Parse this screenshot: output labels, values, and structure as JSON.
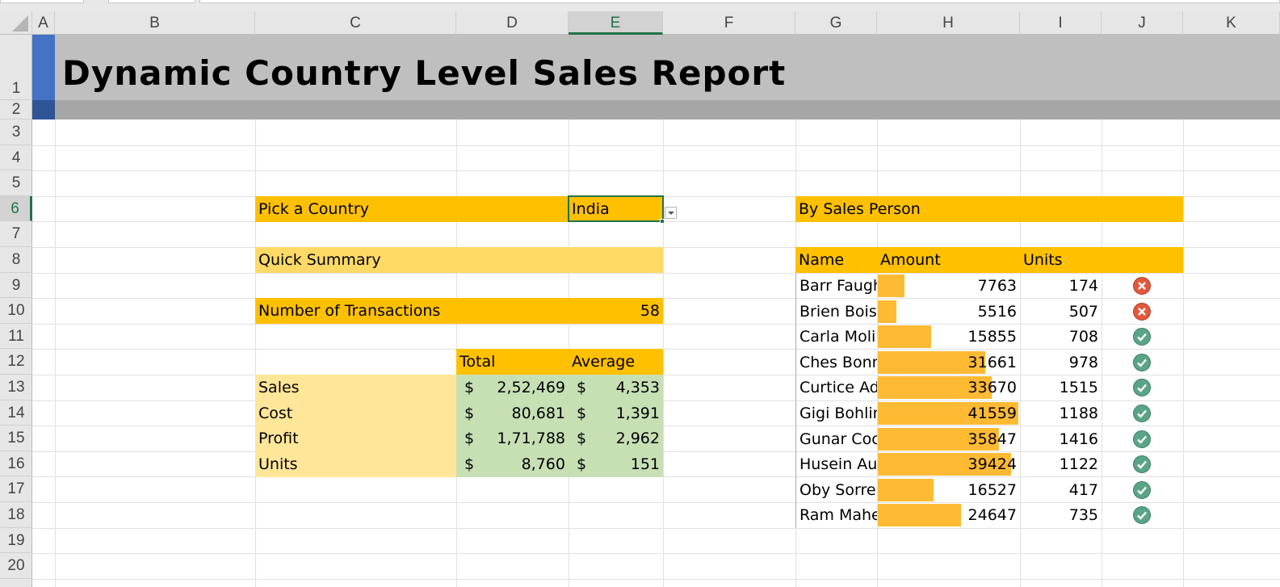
{
  "columns": [
    "A",
    "B",
    "C",
    "D",
    "E",
    "F",
    "G",
    "H",
    "I",
    "J",
    "K"
  ],
  "rows": [
    "1",
    "2",
    "3",
    "4",
    "5",
    "6",
    "7",
    "8",
    "9",
    "10",
    "11",
    "12",
    "13",
    "14",
    "15",
    "16",
    "17",
    "18",
    "19",
    "20"
  ],
  "selected_column": "E",
  "selected_row": "6",
  "title": "Dynamic Country Level Sales Report",
  "picker": {
    "label": "Pick a Country",
    "value": "India"
  },
  "quick_summary": {
    "label": "Quick Summary"
  },
  "transactions": {
    "label": "Number of Transactions",
    "value": "58"
  },
  "summary_table": {
    "headers": {
      "total": "Total",
      "average": "Average"
    },
    "currency": "$",
    "rows": [
      {
        "label": "Sales",
        "total": "2,52,469",
        "average": "4,353"
      },
      {
        "label": "Cost",
        "total": "80,681",
        "average": "1,391"
      },
      {
        "label": "Profit",
        "total": "1,71,788",
        "average": "2,962"
      },
      {
        "label": "Units",
        "total": "8,760",
        "average": "151"
      }
    ]
  },
  "by_sales_person": {
    "title": "By Sales Person",
    "headers": {
      "name": "Name",
      "amount": "Amount",
      "units": "Units"
    },
    "bar_max": 41559,
    "rows": [
      {
        "name": "Barr Faugh",
        "amount": "7763",
        "units": "174",
        "status": "cross-icon"
      },
      {
        "name": "Brien Boise",
        "amount": "5516",
        "units": "507",
        "status": "cross-icon"
      },
      {
        "name": "Carla Molin",
        "amount": "15855",
        "units": "708",
        "status": "check-icon"
      },
      {
        "name": "Ches Bonn",
        "amount": "31661",
        "units": "978",
        "status": "check-icon"
      },
      {
        "name": "Curtice Adv",
        "amount": "33670",
        "units": "1515",
        "status": "check-icon"
      },
      {
        "name": "Gigi Bohlin",
        "amount": "41559",
        "units": "1188",
        "status": "check-icon"
      },
      {
        "name": "Gunar Coc",
        "amount": "35847",
        "units": "1416",
        "status": "check-icon"
      },
      {
        "name": "Husein Aug",
        "amount": "39424",
        "units": "1122",
        "status": "check-icon"
      },
      {
        "name": "Oby Sorrel",
        "amount": "16527",
        "units": "417",
        "status": "check-icon"
      },
      {
        "name": "Ram Mahe",
        "amount": "24647",
        "units": "735",
        "status": "check-icon"
      }
    ]
  },
  "colors": {
    "orange": "#ffc000",
    "light_orange": "#ffd966",
    "light_yellow": "#ffe699",
    "green": "#c6e0b4",
    "databar": "#ffb628",
    "select_green": "#217346",
    "accent_blue": "#4472c4"
  }
}
